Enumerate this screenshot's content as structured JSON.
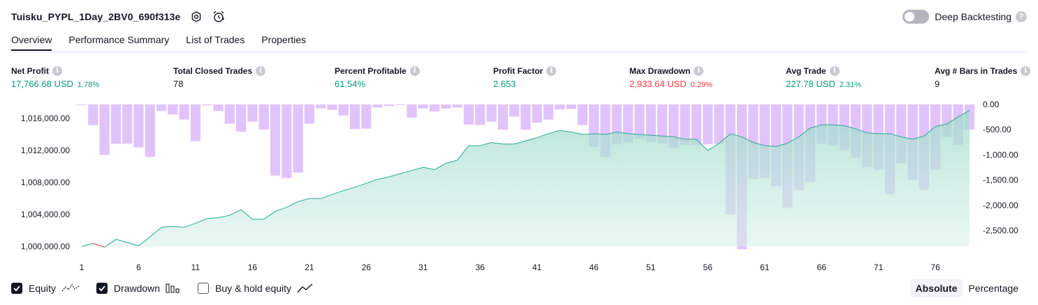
{
  "header": {
    "title": "Tuisku_PYPL_1Day_2BV0_690f313e",
    "deep_backtesting_label": "Deep Backtesting",
    "deep_backtesting_enabled": false
  },
  "tabs": [
    {
      "label": "Overview",
      "active": true
    },
    {
      "label": "Performance Summary",
      "active": false
    },
    {
      "label": "List of Trades",
      "active": false
    },
    {
      "label": "Properties",
      "active": false
    }
  ],
  "stats": {
    "net_profit": {
      "label": "Net Profit",
      "value": "17,766.68 USD",
      "pct": "1.78%"
    },
    "total_closed_trades": {
      "label": "Total Closed Trades",
      "value": "78"
    },
    "percent_profitable": {
      "label": "Percent Profitable",
      "value": "61.54%"
    },
    "profit_factor": {
      "label": "Profit Factor",
      "value": "2.653"
    },
    "max_drawdown": {
      "label": "Max Drawdown",
      "value": "2,933.64 USD",
      "pct": "0.29%"
    },
    "avg_trade": {
      "label": "Avg Trade",
      "value": "227.78 USD",
      "pct": "2.31%"
    },
    "avg_bars": {
      "label": "Avg # Bars in Trades",
      "value": "9"
    }
  },
  "legend": {
    "equity": {
      "label": "Equity",
      "checked": true
    },
    "drawdown": {
      "label": "Drawdown",
      "checked": true
    },
    "buy_hold": {
      "label": "Buy & hold equity",
      "checked": false
    }
  },
  "mode": {
    "absolute": "Absolute",
    "percentage": "Percentage",
    "selected": "Absolute"
  },
  "colors": {
    "equity_line": "#22ab94",
    "equity_fill": "#b2e5d8",
    "equity_loss": "#f23645",
    "drawdown_bar": "#dcb8fa",
    "profit_green": "#089981",
    "loss_red": "#f23645"
  },
  "chart_data": {
    "type": "line",
    "x_ticks": [
      1,
      6,
      11,
      16,
      21,
      26,
      31,
      36,
      41,
      46,
      51,
      56,
      61,
      66,
      71,
      76
    ],
    "left_axis": {
      "ticks": [
        "1,000,000.00",
        "1,004,000.00",
        "1,008,000.00",
        "1,012,000.00",
        "1,016,000.00"
      ],
      "ylim": [
        1000000,
        1017750
      ]
    },
    "right_axis": {
      "ticks": [
        "0.00",
        "-500.00",
        "-1,000.00",
        "-1,500.00",
        "-2,000.00",
        "-2,500.00"
      ],
      "ylim": [
        -2900,
        0
      ]
    },
    "series": [
      {
        "name": "Equity",
        "values": [
          1000000,
          1000400,
          999900,
          1000900,
          1000500,
          1000100,
          1001200,
          1002400,
          1002500,
          1002400,
          1002900,
          1003500,
          1003600,
          1003900,
          1004600,
          1003400,
          1003400,
          1004400,
          1004900,
          1005600,
          1006000,
          1006000,
          1006500,
          1007000,
          1007400,
          1007900,
          1008400,
          1008700,
          1009100,
          1009500,
          1009900,
          1009600,
          1010400,
          1010800,
          1012600,
          1012600,
          1013000,
          1012800,
          1012800,
          1013200,
          1013600,
          1014100,
          1014500,
          1014300,
          1014000,
          1014100,
          1014000,
          1014300,
          1014100,
          1014000,
          1013900,
          1013800,
          1013700,
          1013400,
          1013400,
          1012000,
          1012900,
          1014100,
          1013700,
          1013000,
          1012600,
          1012500,
          1012900,
          1013700,
          1014800,
          1015200,
          1015200,
          1015100,
          1014700,
          1014200,
          1014100,
          1014100,
          1013700,
          1013400,
          1013800,
          1015000,
          1015300,
          1016200,
          1017000
        ]
      },
      {
        "name": "Drawdown",
        "values": [
          0,
          -410,
          -1000,
          -780,
          -780,
          -850,
          -1040,
          -130,
          -200,
          -300,
          -730,
          -20,
          -130,
          -380,
          -540,
          -340,
          -500,
          -1410,
          -1460,
          -1350,
          -380,
          -80,
          -110,
          -220,
          -490,
          -480,
          -60,
          -30,
          -10,
          -260,
          -80,
          -140,
          -80,
          -60,
          -400,
          -410,
          -340,
          -500,
          -240,
          -500,
          -360,
          -300,
          -100,
          -90,
          -410,
          -840,
          -1050,
          -790,
          -750,
          -680,
          -740,
          -780,
          -870,
          -800,
          -810,
          -790,
          -780,
          -2180,
          -2870,
          -1480,
          -1460,
          -1620,
          -2050,
          -1700,
          -1540,
          -780,
          -820,
          -910,
          -1060,
          -1250,
          -1300,
          -1780,
          -1170,
          -1500,
          -1690,
          -1300,
          -650,
          -800,
          -500
        ]
      }
    ]
  }
}
